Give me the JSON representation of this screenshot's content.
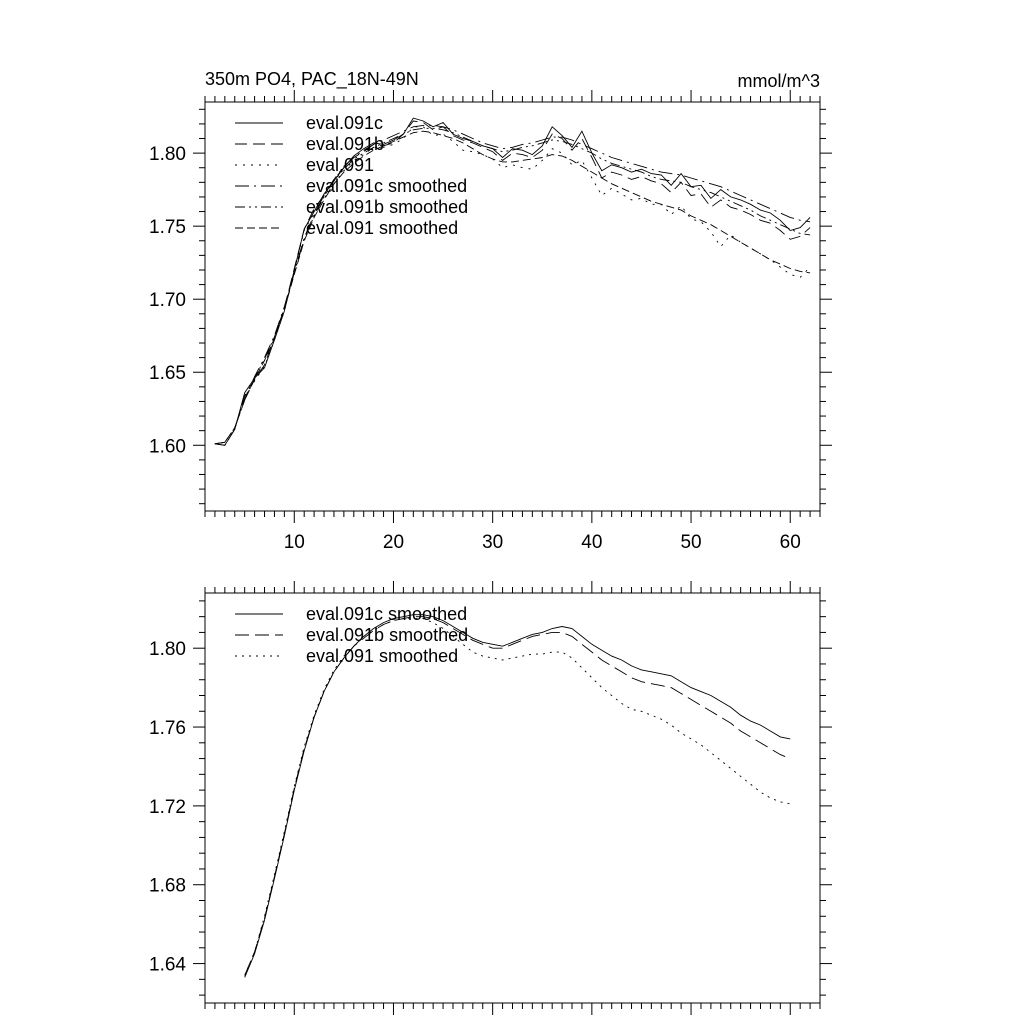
{
  "chart_data": [
    {
      "type": "line",
      "title": "350m PO4, PAC_18N-49N",
      "units": "mmol/m^3",
      "xlim": [
        1,
        63
      ],
      "ylim": [
        1.555,
        1.835
      ],
      "xticks": [
        10,
        20,
        30,
        40,
        50,
        60
      ],
      "xtick_labels": [
        "10",
        "20",
        "30",
        "40",
        "50",
        "60"
      ],
      "yticks": [
        1.6,
        1.65,
        1.7,
        1.75,
        1.8
      ],
      "ytick_labels": [
        "1.60",
        "1.65",
        "1.70",
        "1.75",
        "1.80"
      ],
      "legend_position": "top-left",
      "x": [
        2,
        3,
        4,
        5,
        6,
        7,
        8,
        9,
        10,
        11,
        12,
        13,
        14,
        15,
        16,
        17,
        18,
        19,
        20,
        21,
        22,
        23,
        24,
        25,
        26,
        27,
        28,
        29,
        30,
        31,
        32,
        33,
        34,
        35,
        36,
        37,
        38,
        39,
        40,
        41,
        42,
        43,
        44,
        45,
        46,
        47,
        48,
        49,
        50,
        51,
        52,
        53,
        54,
        55,
        56,
        57,
        58,
        59,
        60,
        61,
        62
      ],
      "series": [
        {
          "name": "eval.091c",
          "dash": "none",
          "values": [
            1.601,
            1.6,
            1.611,
            1.636,
            1.646,
            1.653,
            1.672,
            1.692,
            1.72,
            1.748,
            1.76,
            1.772,
            1.781,
            1.79,
            1.798,
            1.803,
            1.807,
            1.806,
            1.809,
            1.813,
            1.824,
            1.822,
            1.818,
            1.821,
            1.813,
            1.81,
            1.808,
            1.805,
            1.803,
            1.797,
            1.803,
            1.802,
            1.799,
            1.805,
            1.818,
            1.812,
            1.804,
            1.815,
            1.8,
            1.788,
            1.792,
            1.79,
            1.787,
            1.789,
            1.786,
            1.785,
            1.778,
            1.786,
            1.777,
            1.778,
            1.769,
            1.775,
            1.77,
            1.768,
            1.765,
            1.761,
            1.759,
            1.754,
            1.747,
            1.749,
            1.756
          ]
        },
        {
          "name": "eval.091b",
          "dash": "12,6",
          "values": [
            1.601,
            1.6,
            1.611,
            1.634,
            1.645,
            1.655,
            1.674,
            1.694,
            1.721,
            1.748,
            1.762,
            1.771,
            1.782,
            1.79,
            1.797,
            1.801,
            1.806,
            1.805,
            1.807,
            1.813,
            1.822,
            1.821,
            1.816,
            1.818,
            1.812,
            1.809,
            1.807,
            1.804,
            1.801,
            1.795,
            1.8,
            1.799,
            1.797,
            1.802,
            1.813,
            1.81,
            1.802,
            1.81,
            1.797,
            1.783,
            1.787,
            1.785,
            1.782,
            1.784,
            1.781,
            1.779,
            1.773,
            1.78,
            1.771,
            1.772,
            1.763,
            1.768,
            1.763,
            1.761,
            1.758,
            1.754,
            1.752,
            1.747,
            1.741,
            1.743,
            1.749
          ]
        },
        {
          "name": "eval.091",
          "dash": "2,6",
          "values": [
            1.601,
            1.6,
            1.611,
            1.633,
            1.644,
            1.654,
            1.672,
            1.692,
            1.719,
            1.747,
            1.759,
            1.769,
            1.779,
            1.788,
            1.795,
            1.799,
            1.804,
            1.804,
            1.806,
            1.81,
            1.818,
            1.818,
            1.812,
            1.813,
            1.808,
            1.802,
            1.801,
            1.799,
            1.796,
            1.79,
            1.792,
            1.79,
            1.789,
            1.795,
            1.803,
            1.8,
            1.792,
            1.795,
            1.783,
            1.771,
            1.776,
            1.772,
            1.768,
            1.769,
            1.765,
            1.765,
            1.758,
            1.764,
            1.755,
            1.753,
            1.746,
            1.736,
            1.744,
            1.739,
            1.735,
            1.731,
            1.727,
            1.722,
            1.717,
            1.715,
            1.722
          ]
        },
        {
          "name": "eval.091c smoothed",
          "dash": "14,5,2,5",
          "values": [
            1.601,
            1.602,
            1.612,
            1.632,
            1.647,
            1.66,
            1.675,
            1.695,
            1.719,
            1.742,
            1.758,
            1.771,
            1.782,
            1.791,
            1.797,
            1.802,
            1.806,
            1.809,
            1.812,
            1.815,
            1.818,
            1.819,
            1.819,
            1.818,
            1.816,
            1.813,
            1.81,
            1.807,
            1.805,
            1.803,
            1.804,
            1.806,
            1.807,
            1.809,
            1.811,
            1.811,
            1.809,
            1.806,
            1.803,
            1.8,
            1.797,
            1.795,
            1.793,
            1.791,
            1.789,
            1.787,
            1.786,
            1.785,
            1.783,
            1.781,
            1.779,
            1.777,
            1.774,
            1.771,
            1.768,
            1.765,
            1.762,
            1.759,
            1.756,
            1.754,
            1.753
          ]
        },
        {
          "name": "eval.091b smoothed",
          "dash": "10,4,2,4,2,4",
          "values": [
            1.601,
            1.602,
            1.612,
            1.631,
            1.646,
            1.659,
            1.674,
            1.694,
            1.718,
            1.741,
            1.757,
            1.77,
            1.781,
            1.789,
            1.796,
            1.8,
            1.804,
            1.807,
            1.81,
            1.813,
            1.816,
            1.817,
            1.817,
            1.816,
            1.814,
            1.811,
            1.808,
            1.805,
            1.803,
            1.801,
            1.802,
            1.804,
            1.805,
            1.807,
            1.809,
            1.808,
            1.806,
            1.803,
            1.8,
            1.796,
            1.793,
            1.791,
            1.789,
            1.787,
            1.784,
            1.782,
            1.781,
            1.78,
            1.777,
            1.775,
            1.773,
            1.77,
            1.767,
            1.764,
            1.761,
            1.757,
            1.754,
            1.751,
            1.748,
            1.745,
            1.744
          ]
        },
        {
          "name": "eval.091 smoothed",
          "dash": "8,4",
          "values": [
            1.601,
            1.602,
            1.612,
            1.631,
            1.645,
            1.658,
            1.673,
            1.693,
            1.717,
            1.74,
            1.756,
            1.768,
            1.779,
            1.787,
            1.793,
            1.798,
            1.802,
            1.805,
            1.808,
            1.811,
            1.814,
            1.815,
            1.814,
            1.812,
            1.81,
            1.807,
            1.803,
            1.799,
            1.796,
            1.794,
            1.794,
            1.795,
            1.796,
            1.797,
            1.799,
            1.798,
            1.795,
            1.791,
            1.787,
            1.783,
            1.779,
            1.776,
            1.773,
            1.77,
            1.767,
            1.765,
            1.763,
            1.761,
            1.757,
            1.754,
            1.751,
            1.747,
            1.743,
            1.739,
            1.735,
            1.731,
            1.727,
            1.724,
            1.721,
            1.719,
            1.718
          ]
        }
      ]
    },
    {
      "type": "line",
      "title": "",
      "xlim": [
        1,
        63
      ],
      "ylim": [
        1.62,
        1.828
      ],
      "xticks": [
        10,
        20,
        30,
        40,
        50,
        60
      ],
      "yticks": [
        1.64,
        1.68,
        1.72,
        1.76,
        1.8
      ],
      "ytick_labels": [
        "1.64",
        "1.68",
        "1.72",
        "1.76",
        "1.80"
      ],
      "legend_position": "top-left",
      "x": [
        5,
        6,
        7,
        8,
        9,
        10,
        11,
        12,
        13,
        14,
        15,
        16,
        17,
        18,
        19,
        20,
        21,
        22,
        23,
        24,
        25,
        26,
        27,
        28,
        29,
        30,
        31,
        32,
        33,
        34,
        35,
        36,
        37,
        38,
        39,
        40,
        41,
        42,
        43,
        44,
        45,
        46,
        47,
        48,
        49,
        50,
        51,
        52,
        53,
        54,
        55,
        56,
        57,
        58,
        59,
        60
      ],
      "series": [
        {
          "name": "eval.091c smoothed",
          "dash": "none",
          "values": [
            1.633,
            1.645,
            1.662,
            1.683,
            1.705,
            1.728,
            1.748,
            1.765,
            1.778,
            1.788,
            1.795,
            1.801,
            1.806,
            1.81,
            1.813,
            1.815,
            1.816,
            1.817,
            1.817,
            1.816,
            1.814,
            1.811,
            1.808,
            1.805,
            1.803,
            1.802,
            1.801,
            1.803,
            1.805,
            1.807,
            1.808,
            1.81,
            1.811,
            1.81,
            1.806,
            1.802,
            1.799,
            1.796,
            1.794,
            1.791,
            1.789,
            1.788,
            1.787,
            1.786,
            1.783,
            1.78,
            1.778,
            1.776,
            1.773,
            1.77,
            1.766,
            1.763,
            1.761,
            1.758,
            1.755,
            1.754
          ]
        },
        {
          "name": "eval.091b smoothed",
          "dash": "14,6",
          "values": [
            1.634,
            1.646,
            1.663,
            1.684,
            1.706,
            1.729,
            1.749,
            1.765,
            1.778,
            1.788,
            1.795,
            1.801,
            1.805,
            1.809,
            1.812,
            1.814,
            1.815,
            1.816,
            1.816,
            1.815,
            1.813,
            1.81,
            1.807,
            1.804,
            1.802,
            1.8,
            1.8,
            1.802,
            1.804,
            1.806,
            1.807,
            1.808,
            1.808,
            1.806,
            1.802,
            1.798,
            1.794,
            1.791,
            1.788,
            1.785,
            1.783,
            1.782,
            1.781,
            1.78,
            1.777,
            1.774,
            1.771,
            1.768,
            1.765,
            1.762,
            1.758,
            1.755,
            1.752,
            1.749,
            1.746,
            1.744
          ]
        },
        {
          "name": "eval.091 smoothed",
          "dash": "2,5",
          "values": [
            1.634,
            1.646,
            1.664,
            1.685,
            1.707,
            1.73,
            1.75,
            1.766,
            1.779,
            1.789,
            1.796,
            1.801,
            1.806,
            1.809,
            1.812,
            1.814,
            1.815,
            1.815,
            1.815,
            1.813,
            1.81,
            1.806,
            1.802,
            1.798,
            1.796,
            1.795,
            1.794,
            1.795,
            1.796,
            1.797,
            1.797,
            1.798,
            1.798,
            1.795,
            1.79,
            1.785,
            1.78,
            1.776,
            1.772,
            1.769,
            1.768,
            1.766,
            1.764,
            1.761,
            1.757,
            1.754,
            1.751,
            1.747,
            1.743,
            1.739,
            1.735,
            1.731,
            1.727,
            1.724,
            1.722,
            1.721
          ]
        }
      ]
    }
  ]
}
